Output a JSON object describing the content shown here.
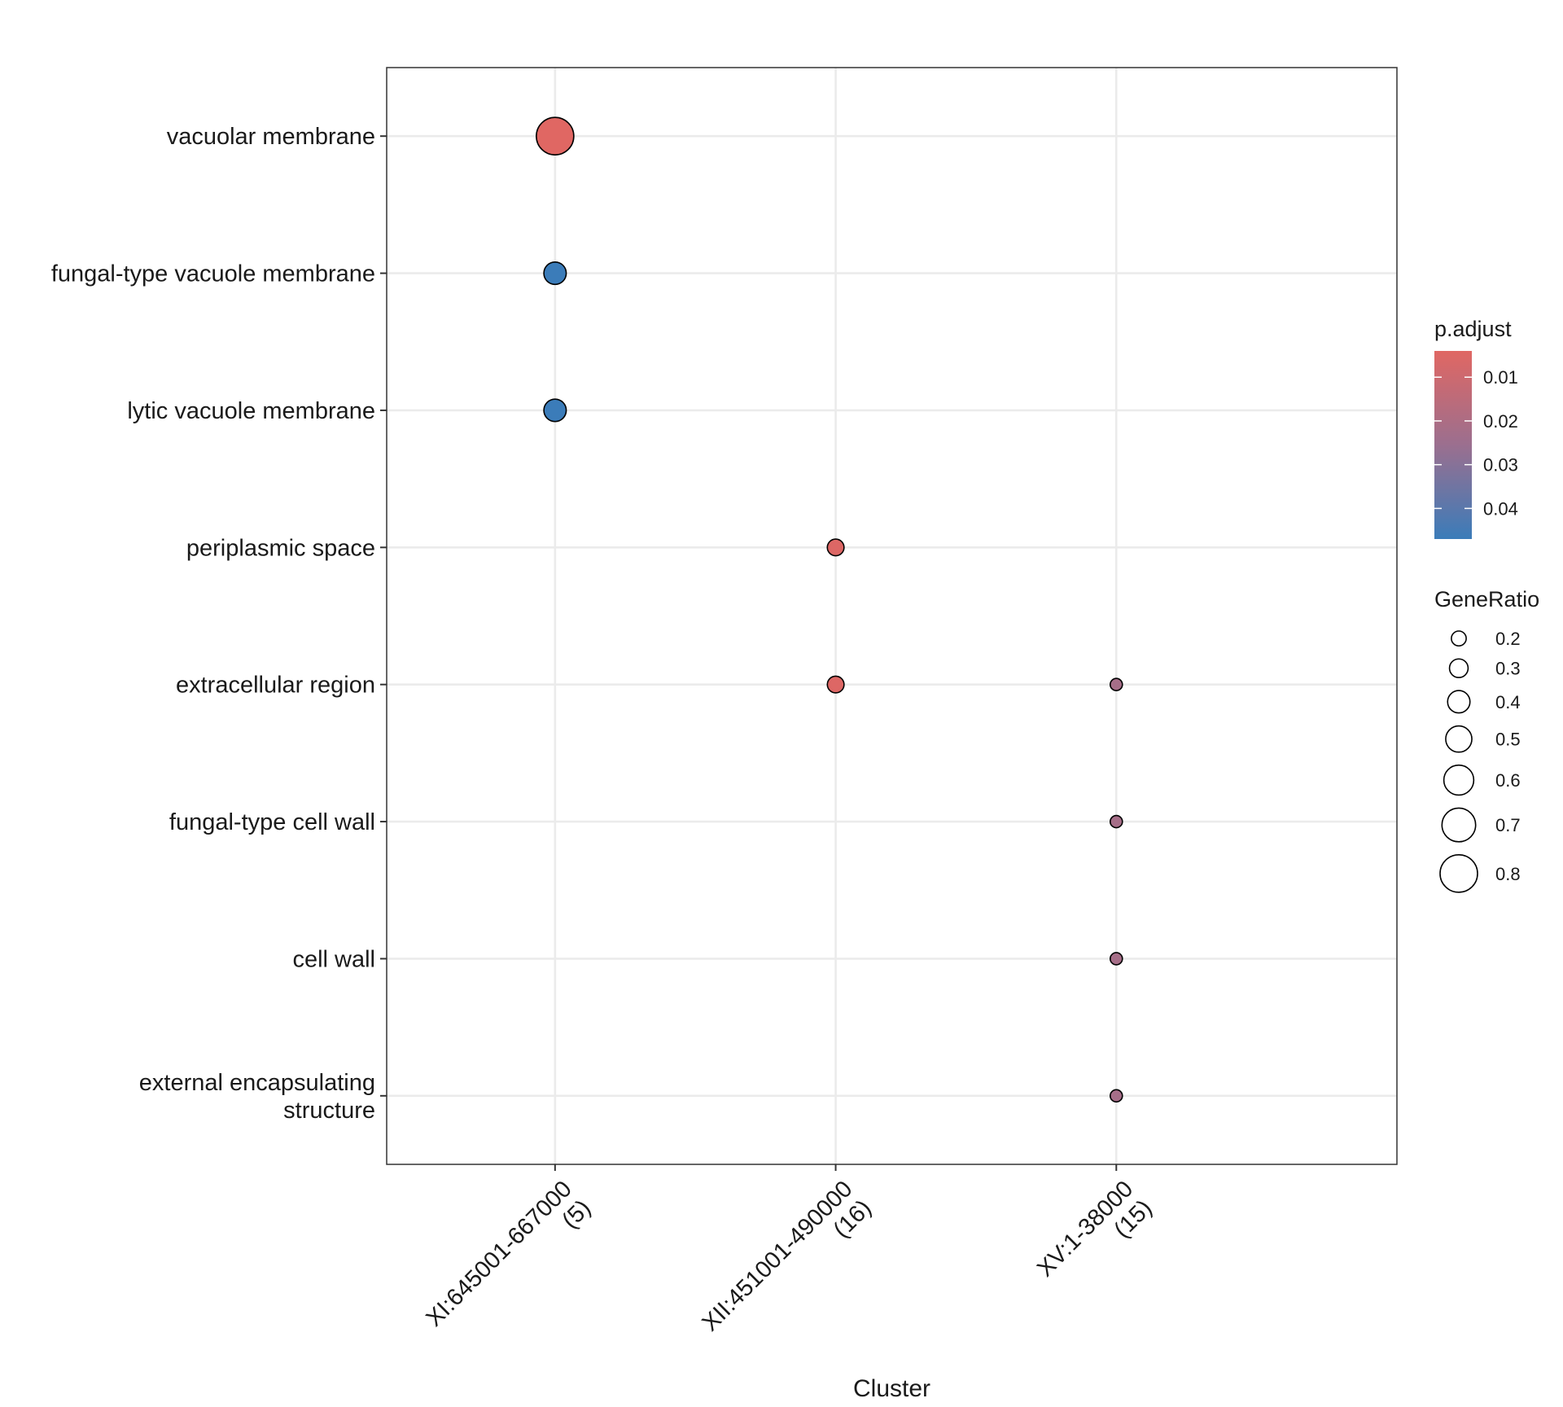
{
  "chart_data": {
    "type": "scatter",
    "xlabel": "Cluster",
    "ylabel": "",
    "x_categories": [
      [
        "XI:645001-667000",
        "(5)"
      ],
      [
        "XII:451001-490000",
        "(16)"
      ],
      [
        "XV:1-38000",
        "(15)"
      ]
    ],
    "y_categories": [
      [
        "vacuolar membrane"
      ],
      [
        "fungal-type vacuole membrane"
      ],
      [
        "lytic vacuole membrane"
      ],
      [
        "periplasmic space"
      ],
      [
        "extracellular region"
      ],
      [
        "fungal-type cell wall"
      ],
      [
        "cell wall"
      ],
      [
        "external encapsulating",
        "structure"
      ]
    ],
    "points": [
      {
        "cluster": 0,
        "term": 0,
        "gene_ratio": 0.8,
        "p_adjust": 0.004
      },
      {
        "cluster": 0,
        "term": 1,
        "gene_ratio": 0.4,
        "p_adjust": 0.047
      },
      {
        "cluster": 0,
        "term": 2,
        "gene_ratio": 0.4,
        "p_adjust": 0.047
      },
      {
        "cluster": 1,
        "term": 3,
        "gene_ratio": 0.25,
        "p_adjust": 0.005
      },
      {
        "cluster": 1,
        "term": 4,
        "gene_ratio": 0.25,
        "p_adjust": 0.005
      },
      {
        "cluster": 2,
        "term": 4,
        "gene_ratio": 0.13,
        "p_adjust": 0.022
      },
      {
        "cluster": 2,
        "term": 5,
        "gene_ratio": 0.13,
        "p_adjust": 0.022
      },
      {
        "cluster": 2,
        "term": 6,
        "gene_ratio": 0.13,
        "p_adjust": 0.022
      },
      {
        "cluster": 2,
        "term": 7,
        "gene_ratio": 0.13,
        "p_adjust": 0.022
      }
    ],
    "color_legend": {
      "title": "p.adjust",
      "range": [
        0.004,
        0.047
      ],
      "ticks": [
        0.01,
        0.02,
        0.03,
        0.04
      ],
      "low_color": "#e06763",
      "high_color": "#3b7cb9"
    },
    "size_legend": {
      "title": "GeneRatio",
      "values": [
        0.2,
        0.3,
        0.4,
        0.5,
        0.6,
        0.7,
        0.8
      ]
    },
    "grid": true,
    "legend_position": "right"
  }
}
